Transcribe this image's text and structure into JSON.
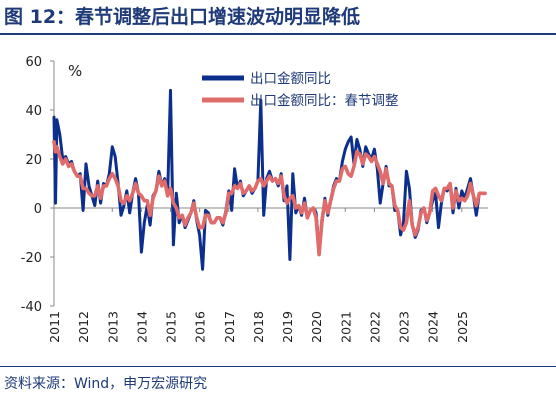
{
  "header": {
    "title": "图 12：春节调整后出口增速波动明显降低"
  },
  "footer": {
    "source": "资料来源：Wind，申万宏源研究"
  },
  "chart_data": {
    "type": "line",
    "unit_label": "%",
    "ylim": [
      -40,
      60
    ],
    "yticks": [
      -40,
      -20,
      0,
      20,
      40,
      60
    ],
    "xlim": [
      2011,
      2025.9
    ],
    "xticks": [
      "2011",
      "2012",
      "2013",
      "2014",
      "2015",
      "2016",
      "2017",
      "2018",
      "2019",
      "2020",
      "2021",
      "2022",
      "2023",
      "2024",
      "2025"
    ],
    "grid": false,
    "legend_position": "top-center",
    "series": [
      {
        "name": "出口金额同比",
        "color": "#0d2f8c",
        "x": [
          2011.0,
          2011.05,
          2011.1,
          2011.2,
          2011.3,
          2011.4,
          2011.5,
          2011.6,
          2011.7,
          2011.8,
          2011.9,
          2012.0,
          2012.1,
          2012.2,
          2012.3,
          2012.4,
          2012.5,
          2012.6,
          2012.7,
          2012.8,
          2012.9,
          2013.0,
          2013.1,
          2013.2,
          2013.3,
          2013.4,
          2013.5,
          2013.6,
          2013.7,
          2013.8,
          2013.9,
          2014.0,
          2014.1,
          2014.2,
          2014.3,
          2014.4,
          2014.5,
          2014.6,
          2014.7,
          2014.8,
          2014.9,
          2015.0,
          2015.1,
          2015.2,
          2015.3,
          2015.4,
          2015.5,
          2015.6,
          2015.7,
          2015.8,
          2015.9,
          2016.0,
          2016.1,
          2016.2,
          2016.3,
          2016.4,
          2016.5,
          2016.6,
          2016.7,
          2016.8,
          2016.9,
          2017.0,
          2017.1,
          2017.2,
          2017.3,
          2017.4,
          2017.5,
          2017.6,
          2017.7,
          2017.8,
          2017.9,
          2018.0,
          2018.1,
          2018.2,
          2018.3,
          2018.4,
          2018.5,
          2018.6,
          2018.7,
          2018.8,
          2018.9,
          2019.0,
          2019.1,
          2019.2,
          2019.3,
          2019.4,
          2019.5,
          2019.6,
          2019.7,
          2019.8,
          2019.9,
          2020.0,
          2020.1,
          2020.2,
          2020.3,
          2020.4,
          2020.5,
          2020.6,
          2020.7,
          2020.8,
          2020.9,
          2021.0,
          2021.1,
          2021.2,
          2021.3,
          2021.4,
          2021.5,
          2021.6,
          2021.7,
          2021.8,
          2021.9,
          2022.0,
          2022.1,
          2022.2,
          2022.3,
          2022.4,
          2022.5,
          2022.6,
          2022.7,
          2022.8,
          2022.9,
          2023.0,
          2023.1,
          2023.2,
          2023.3,
          2023.4,
          2023.5,
          2023.6,
          2023.7,
          2023.8,
          2023.9,
          2024.0,
          2024.1,
          2024.2,
          2024.3,
          2024.4,
          2024.5,
          2024.6,
          2024.7,
          2024.8,
          2024.9,
          2025.0,
          2025.1,
          2025.2,
          2025.3,
          2025.4,
          2025.5,
          2025.6,
          2025.7,
          2025.8
        ],
        "values": [
          37,
          2,
          36,
          30,
          20,
          21,
          18,
          19,
          15,
          13,
          14,
          -1,
          18,
          9,
          5,
          1,
          11,
          2,
          10,
          9,
          14,
          25,
          21,
          10,
          -3,
          1,
          7,
          -2,
          6,
          12,
          6,
          -18,
          -6,
          1,
          -7,
          5,
          7,
          15,
          9,
          12,
          5,
          48,
          -15,
          6,
          -6,
          -3,
          -8,
          -5,
          -2,
          3,
          -5,
          -11,
          -25,
          -1,
          -2,
          -6,
          -6,
          -4,
          -4,
          -7,
          -1,
          7,
          -1,
          16,
          8,
          11,
          5,
          7,
          9,
          6,
          8,
          11,
          44,
          -3,
          12,
          15,
          11,
          12,
          9,
          14,
          3,
          9,
          -21,
          14,
          -2,
          1,
          -3,
          4,
          -4,
          -1,
          0,
          -2,
          -17,
          -6,
          4,
          -3,
          3,
          9,
          12,
          11,
          19,
          24,
          27,
          29,
          18,
          28,
          24,
          17,
          25,
          22,
          20,
          24,
          16,
          2,
          10,
          17,
          9,
          9,
          -1,
          -1,
          -11,
          -6,
          15,
          8,
          -7,
          -12,
          -9,
          -1,
          0,
          -6,
          -2,
          3,
          6,
          -8,
          2,
          8,
          7,
          10,
          -2,
          8,
          0,
          7,
          4,
          8,
          12,
          5,
          -3,
          6,
          6,
          6
        ]
      },
      {
        "name": "出口金额同比：春节调整",
        "color": "#e06b6b",
        "x": [
          2011.0,
          2011.05,
          2011.1,
          2011.2,
          2011.3,
          2011.4,
          2011.5,
          2011.6,
          2011.7,
          2011.8,
          2011.9,
          2012.0,
          2012.1,
          2012.2,
          2012.3,
          2012.4,
          2012.5,
          2012.6,
          2012.7,
          2012.8,
          2012.9,
          2013.0,
          2013.1,
          2013.2,
          2013.3,
          2013.4,
          2013.5,
          2013.6,
          2013.7,
          2013.8,
          2013.9,
          2014.0,
          2014.1,
          2014.2,
          2014.3,
          2014.4,
          2014.5,
          2014.6,
          2014.7,
          2014.8,
          2014.9,
          2015.0,
          2015.1,
          2015.2,
          2015.3,
          2015.4,
          2015.5,
          2015.6,
          2015.7,
          2015.8,
          2015.9,
          2016.0,
          2016.1,
          2016.2,
          2016.3,
          2016.4,
          2016.5,
          2016.6,
          2016.7,
          2016.8,
          2016.9,
          2017.0,
          2017.1,
          2017.2,
          2017.3,
          2017.4,
          2017.5,
          2017.6,
          2017.7,
          2017.8,
          2017.9,
          2018.0,
          2018.1,
          2018.2,
          2018.3,
          2018.4,
          2018.5,
          2018.6,
          2018.7,
          2018.8,
          2018.9,
          2019.0,
          2019.1,
          2019.2,
          2019.3,
          2019.4,
          2019.5,
          2019.6,
          2019.7,
          2019.8,
          2019.9,
          2020.0,
          2020.1,
          2020.2,
          2020.3,
          2020.4,
          2020.5,
          2020.6,
          2020.7,
          2020.8,
          2020.9,
          2021.0,
          2021.1,
          2021.2,
          2021.3,
          2021.4,
          2021.5,
          2021.6,
          2021.7,
          2021.8,
          2021.9,
          2022.0,
          2022.1,
          2022.2,
          2022.3,
          2022.4,
          2022.5,
          2022.6,
          2022.7,
          2022.8,
          2022.9,
          2023.0,
          2023.1,
          2023.2,
          2023.3,
          2023.4,
          2023.5,
          2023.6,
          2023.7,
          2023.8,
          2023.9,
          2024.0,
          2024.1,
          2024.2,
          2024.3,
          2024.4,
          2024.5,
          2024.6,
          2024.7,
          2024.8,
          2024.9,
          2025.0,
          2025.1,
          2025.2,
          2025.3,
          2025.4,
          2025.5,
          2025.6,
          2025.7,
          2025.8
        ],
        "values": [
          27,
          23,
          25,
          21,
          18,
          20,
          17,
          18,
          15,
          13,
          13,
          8,
          8,
          6,
          5,
          5,
          9,
          4,
          9,
          9,
          12,
          14,
          12,
          9,
          3,
          2,
          5,
          3,
          6,
          10,
          6,
          5,
          3,
          3,
          -3,
          4,
          7,
          13,
          9,
          11,
          5,
          8,
          2,
          0,
          -4,
          -3,
          -7,
          -4,
          -2,
          2,
          -4,
          -8,
          -8,
          -3,
          -3,
          -6,
          -6,
          -4,
          -4,
          -6,
          -2,
          6,
          6,
          9,
          8,
          10,
          6,
          7,
          9,
          7,
          8,
          11,
          12,
          9,
          11,
          13,
          11,
          12,
          10,
          13,
          5,
          2,
          4,
          5,
          0,
          1,
          -2,
          2,
          -4,
          -1,
          0,
          -4,
          -19,
          -5,
          3,
          -2,
          3,
          8,
          11,
          11,
          16,
          17,
          14,
          13,
          17,
          23,
          22,
          18,
          22,
          21,
          19,
          21,
          18,
          15,
          10,
          16,
          10,
          9,
          1,
          -1,
          -8,
          -9,
          -6,
          3,
          -7,
          -11,
          -8,
          -2,
          0,
          -5,
          -2,
          7,
          8,
          5,
          3,
          8,
          8,
          10,
          0,
          7,
          3,
          4,
          3,
          5,
          10,
          5,
          1,
          6,
          6,
          6
        ]
      }
    ]
  }
}
